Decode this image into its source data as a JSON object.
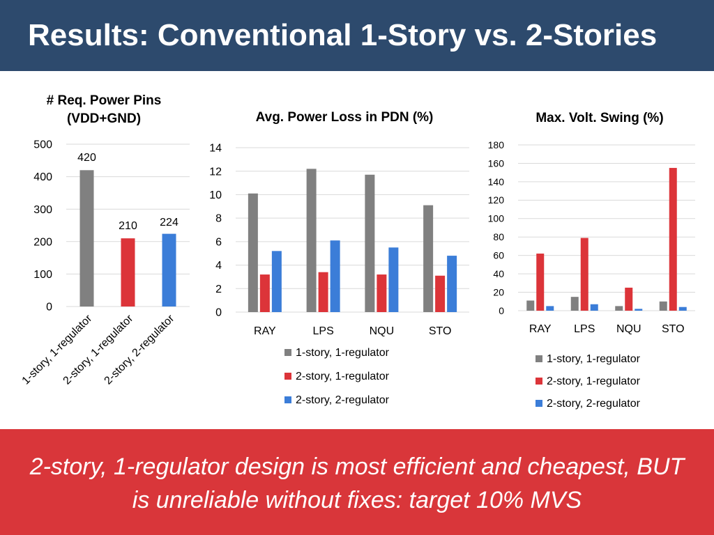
{
  "slide": {
    "title": "Results: Conventional 1-Story vs. 2-Stories",
    "footer_line1": "2-story, 1-regulator design is most efficient and cheapest, BUT",
    "footer_line2": "is unreliable without fixes: target 10% MVS"
  },
  "colors": {
    "header_bg": "#2d4a6d",
    "footer_bg": "#d9363a",
    "series_1": "#808080",
    "series_2": "#dc3439",
    "series_3": "#3b7dd8"
  },
  "chart_data": [
    {
      "type": "bar",
      "title_lines": [
        "# Req. Power Pins",
        "(VDD+GND)"
      ],
      "categories": [
        "1-story, 1-regulator",
        "2-story, 1-regulator",
        "2-story, 2-regulator"
      ],
      "values": [
        420,
        210,
        224
      ],
      "data_labels": [
        "420",
        "210",
        "224"
      ],
      "bar_colors": [
        "#808080",
        "#dc3439",
        "#3b7dd8"
      ],
      "ylim": [
        0,
        500
      ],
      "yticks": [
        0,
        100,
        200,
        300,
        400,
        500
      ],
      "grid": true,
      "legend": "none"
    },
    {
      "type": "bar",
      "title_lines": [
        "Avg. Power Loss in PDN (%)"
      ],
      "categories": [
        "RAY",
        "LPS",
        "NQU",
        "STO"
      ],
      "series": [
        {
          "name": "1-story, 1-regulator",
          "values": [
            10.1,
            12.2,
            11.7,
            9.1
          ]
        },
        {
          "name": "2-story, 1-regulator",
          "values": [
            3.2,
            3.4,
            3.2,
            3.1
          ]
        },
        {
          "name": "2-story, 2-regulator",
          "values": [
            5.2,
            6.1,
            5.5,
            4.8
          ]
        }
      ],
      "ylim": [
        0,
        14
      ],
      "yticks": [
        0,
        2,
        4,
        6,
        8,
        10,
        12,
        14
      ],
      "grid": true,
      "legend": "bottom"
    },
    {
      "type": "bar",
      "title_lines": [
        "Max. Volt. Swing (%)"
      ],
      "categories": [
        "RAY",
        "LPS",
        "NQU",
        "STO"
      ],
      "series": [
        {
          "name": "1-story, 1-regulator",
          "values": [
            11,
            15,
            5,
            10
          ]
        },
        {
          "name": "2-story, 1-regulator",
          "values": [
            62,
            79,
            25,
            155
          ]
        },
        {
          "name": "2-story, 2-regulator",
          "values": [
            5,
            7,
            2,
            4
          ]
        }
      ],
      "ylim": [
        0,
        180
      ],
      "yticks": [
        0,
        20,
        40,
        60,
        80,
        100,
        120,
        140,
        160,
        180
      ],
      "grid": true,
      "legend": "bottom"
    }
  ]
}
